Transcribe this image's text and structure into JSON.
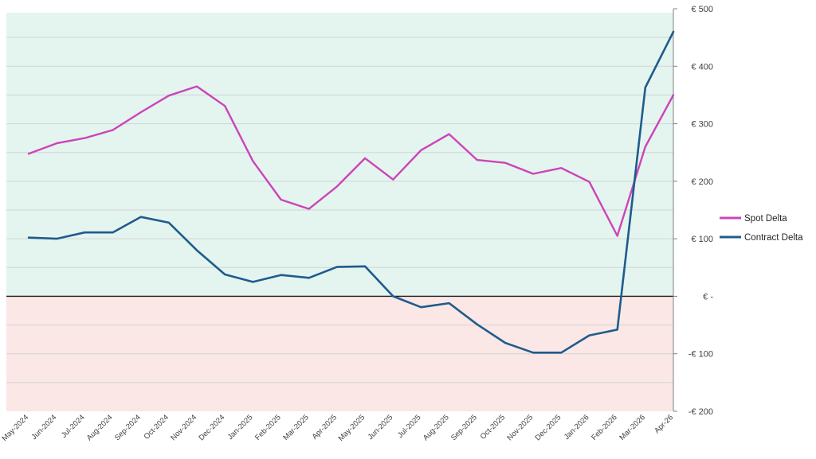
{
  "chart_data": {
    "type": "line",
    "title": "",
    "xlabel": "",
    "ylabel": "",
    "categories": [
      "May-2024",
      "Jun-2024",
      "Jul-2024",
      "Aug-2024",
      "Sep-2024",
      "Oct-2024",
      "Nov-2024",
      "Dec-2024",
      "Jan-2025",
      "Feb-2025",
      "Mar-2025",
      "Apr-2025",
      "May-2025",
      "Jun-2025",
      "Jul-2025",
      "Aug-2025",
      "Sep-2025",
      "Oct-2025",
      "Nov-2025",
      "Dec-2025",
      "Jan-2026",
      "Feb-2026",
      "Mar-2026",
      "Apr-26"
    ],
    "series": [
      {
        "name": "Spot Delta",
        "color": "#cc44b8",
        "values": [
          248,
          266,
          275,
          289,
          320,
          349,
          365,
          331,
          235,
          168,
          152,
          191,
          240,
          203,
          254,
          282,
          237,
          232,
          213,
          223,
          199,
          105,
          260,
          350
        ]
      },
      {
        "name": "Contract Delta",
        "color": "#1f5c8c",
        "values": [
          102,
          100,
          111,
          111,
          138,
          128,
          80,
          38,
          25,
          37,
          32,
          51,
          52,
          0,
          -19,
          -12,
          -49,
          -81,
          -98,
          -98,
          -68,
          -58,
          363,
          460
        ]
      }
    ],
    "ylim": [
      -200,
      500
    ],
    "yticks": [
      500,
      400,
      300,
      200,
      100,
      0,
      -100,
      -200
    ],
    "ytick_labels": [
      "€ 500",
      "€ 400",
      "€ 300",
      "€ 200",
      "€ 100",
      "€ -",
      "-€ 100",
      "-€ 200"
    ],
    "y_axis_position": "right",
    "grid": true,
    "background_bands": [
      {
        "from": 0,
        "to": 500,
        "color": "#e4f4ef"
      },
      {
        "from": -200,
        "to": 0,
        "color": "#fbe7e6"
      }
    ],
    "legend": {
      "position": "right"
    }
  }
}
